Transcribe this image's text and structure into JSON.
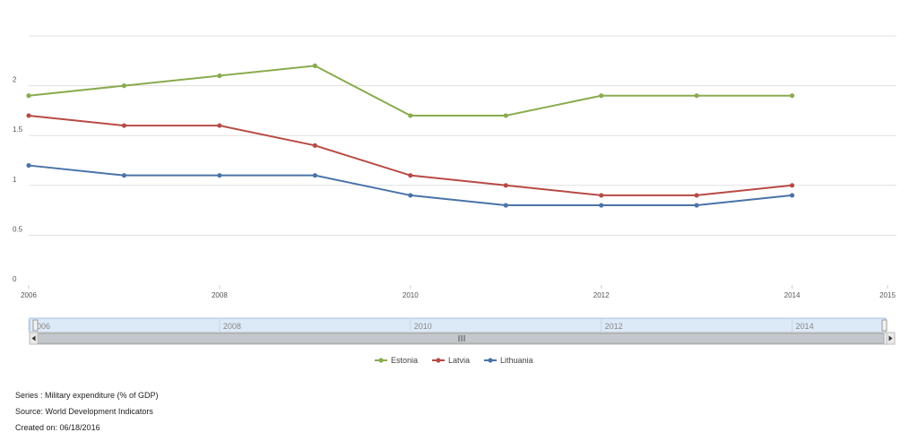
{
  "chart_data": {
    "type": "line",
    "x": [
      2006,
      2007,
      2008,
      2009,
      2010,
      2011,
      2012,
      2013,
      2014
    ],
    "x_ticks": [
      "2006",
      "2008",
      "2010",
      "2012",
      "2014",
      "2015"
    ],
    "xlim": [
      2006,
      2015
    ],
    "y_ticks": [
      "0",
      "0.5",
      "1",
      "1.5",
      "2"
    ],
    "ylim": [
      0,
      2.5
    ],
    "grid": true,
    "legend_position": "bottom-center",
    "series": [
      {
        "name": "Estonia",
        "color": "#8aab4e",
        "values": [
          1.9,
          2.0,
          2.1,
          2.2,
          1.7,
          1.7,
          1.9,
          1.9,
          1.9
        ]
      },
      {
        "name": "Latvia",
        "color": "#b84a45",
        "values": [
          1.7,
          1.6,
          1.6,
          1.4,
          1.1,
          1.0,
          0.9,
          0.9,
          1.0
        ]
      },
      {
        "name": "Lithuania",
        "color": "#4a73a8",
        "values": [
          1.2,
          1.1,
          1.1,
          1.1,
          0.9,
          0.8,
          0.8,
          0.8,
          0.9
        ]
      }
    ]
  },
  "navigator": {
    "labels": [
      "2006",
      "2008",
      "2010",
      "2012",
      "2014"
    ],
    "scroll_left_icon": "arrow-left-icon",
    "scroll_right_icon": "arrow-right-icon",
    "grip_icon": "grip-icon"
  },
  "footer": {
    "series": "Series : Military expenditure (% of GDP)",
    "source": "Source: World Development Indicators",
    "created": "Created on: 06/18/2016"
  }
}
